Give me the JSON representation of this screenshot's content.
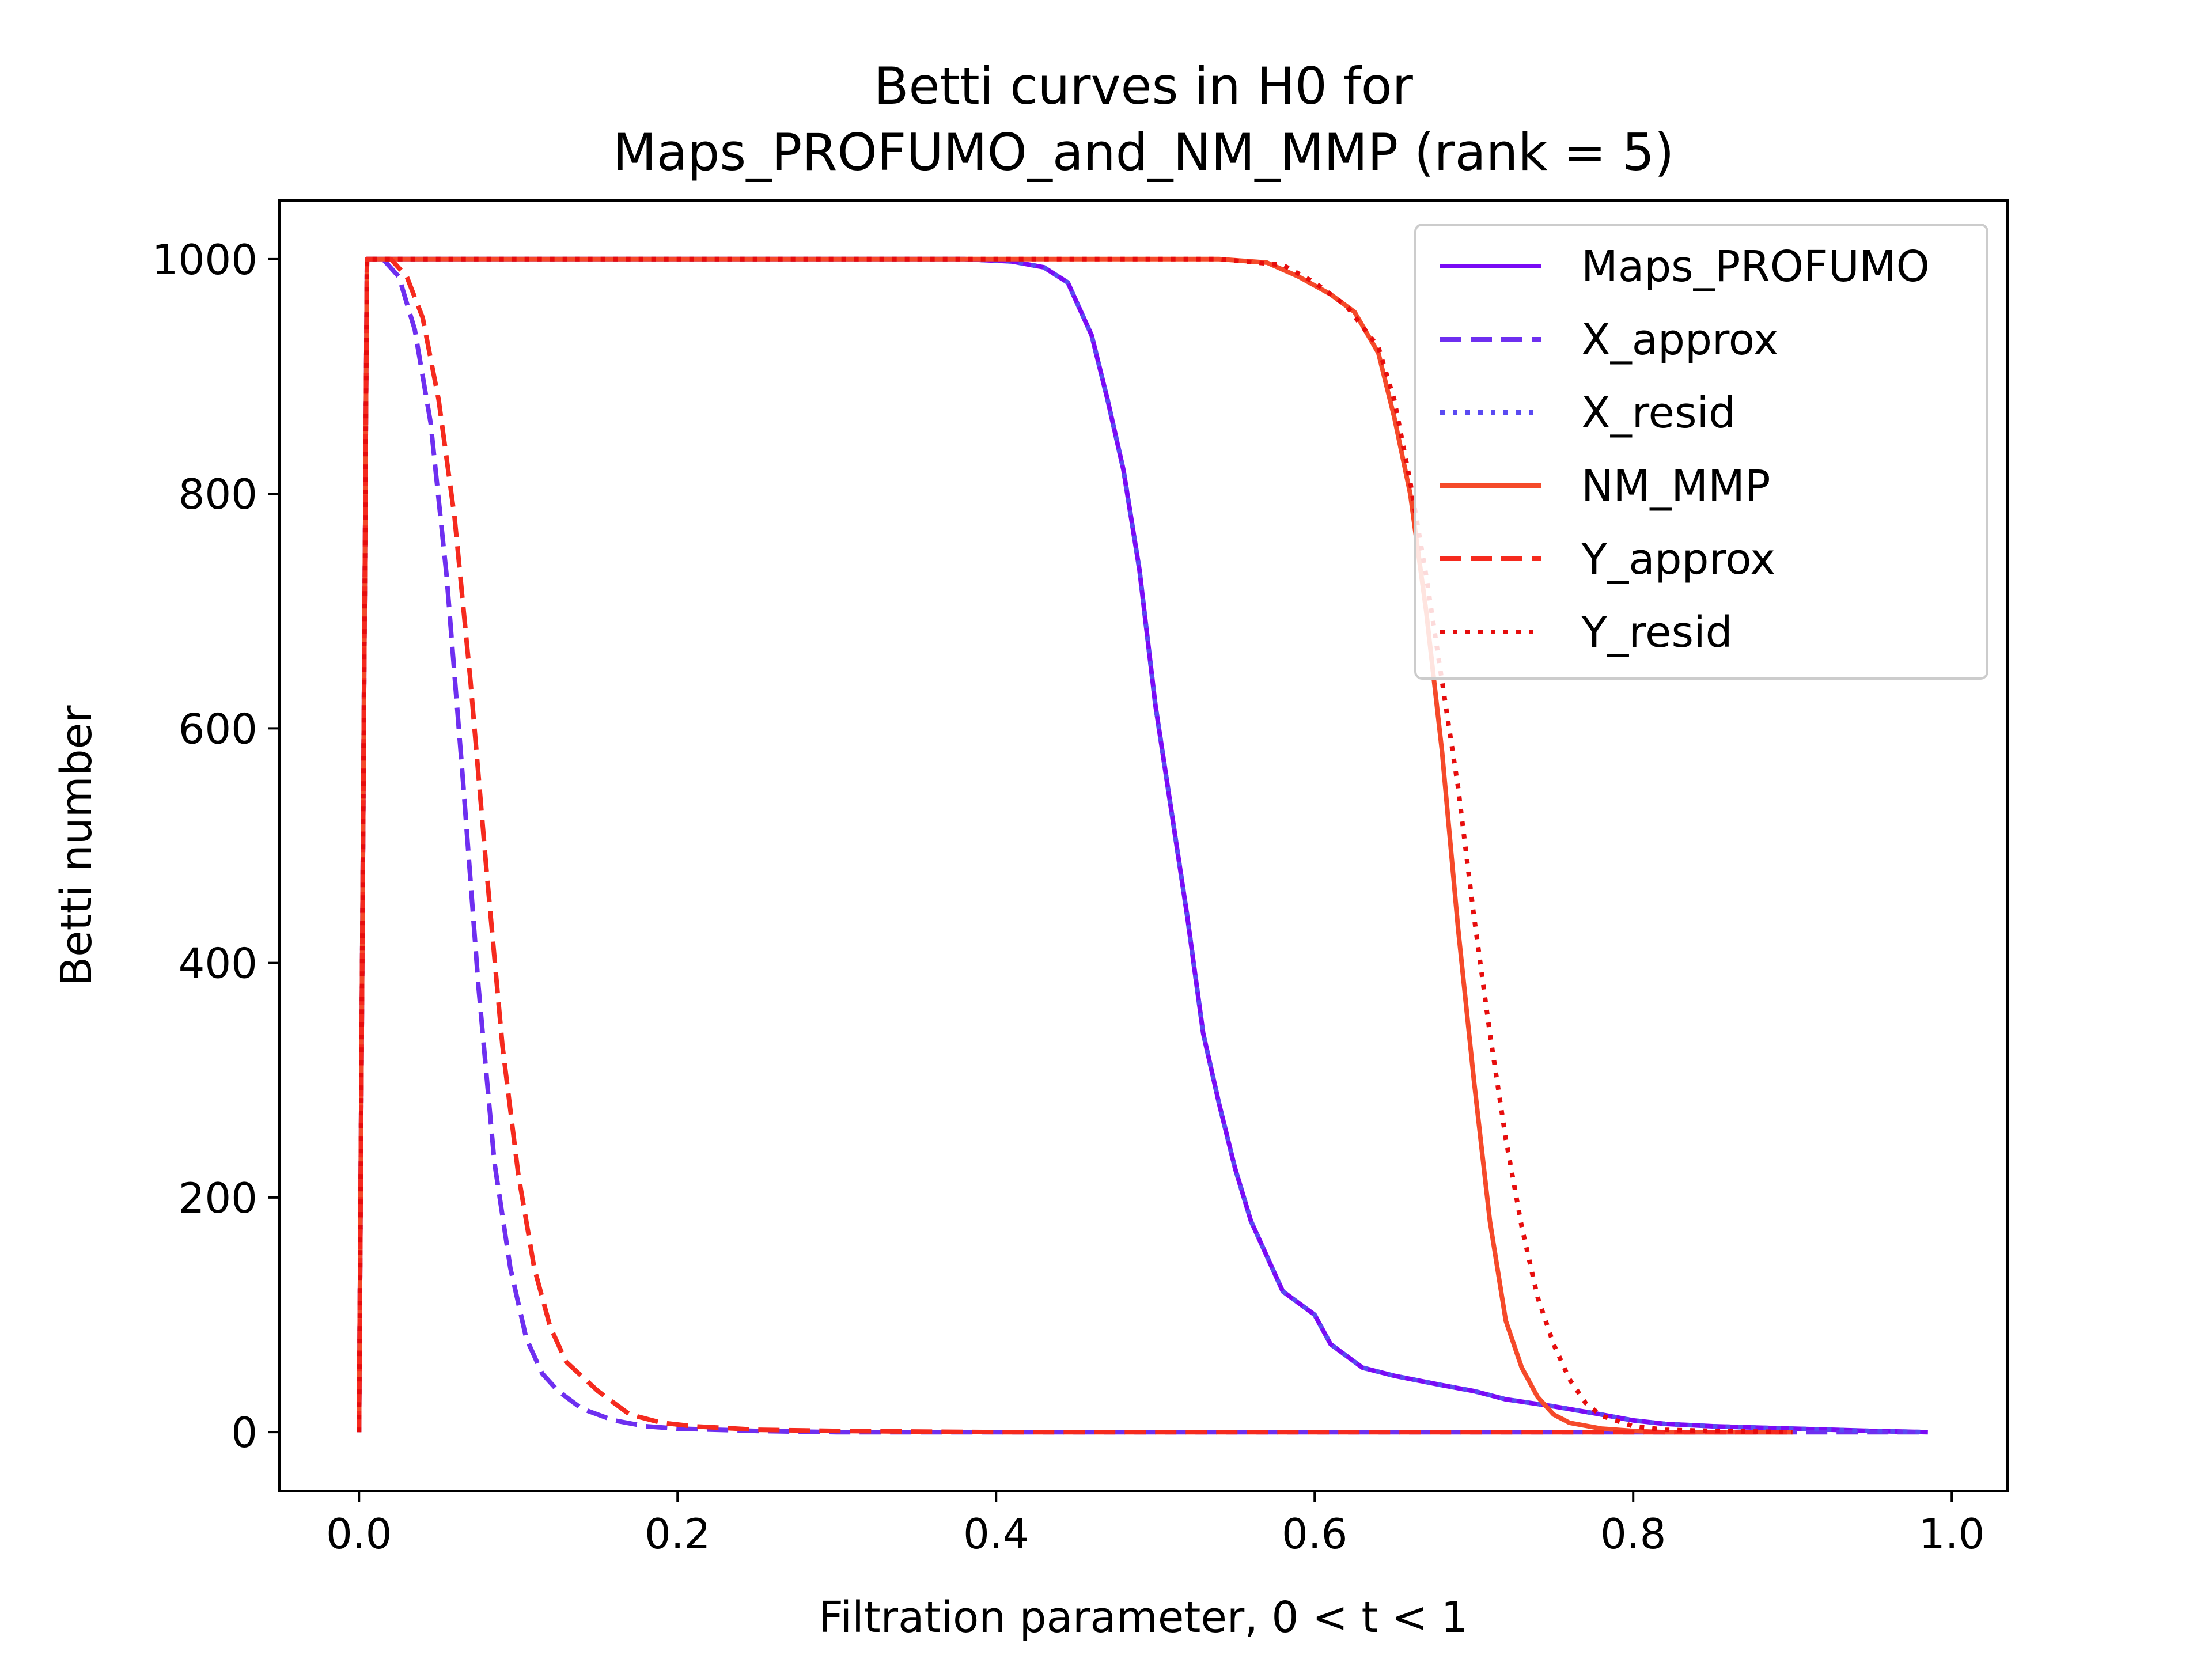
{
  "chart_data": {
    "type": "line",
    "title": [
      "Betti curves in H0 for",
      "Maps_PROFUMO_and_NM_MMP (rank = 5)"
    ],
    "xlabel": "Filtration parameter, 0 < t < 1",
    "ylabel": "Betti number",
    "xlim": [
      -0.05,
      1.035
    ],
    "ylim": [
      -50,
      1050
    ],
    "xticks": [
      0.0,
      0.2,
      0.4,
      0.6,
      0.8,
      1.0
    ],
    "xtick_labels": [
      "0.0",
      "0.2",
      "0.4",
      "0.6",
      "0.8",
      "1.0"
    ],
    "yticks": [
      0,
      200,
      400,
      600,
      800,
      1000
    ],
    "ytick_labels": [
      "0",
      "200",
      "400",
      "600",
      "800",
      "1000"
    ],
    "grid": false,
    "legend_position": "top-right",
    "series": [
      {
        "name": "Maps_PROFUMO",
        "color": "#7a0af5",
        "dash": "solid",
        "x": [
          0,
          0.005,
          0.38,
          0.41,
          0.43,
          0.445,
          0.46,
          0.47,
          0.48,
          0.49,
          0.5,
          0.51,
          0.52,
          0.53,
          0.54,
          0.55,
          0.56,
          0.58,
          0.6,
          0.61,
          0.62,
          0.63,
          0.65,
          0.68,
          0.7,
          0.72,
          0.75,
          0.78,
          0.8,
          0.82,
          0.85,
          0.9,
          0.95,
          0.985
        ],
        "y": [
          0,
          1000,
          1000,
          998,
          993,
          980,
          935,
          880,
          820,
          735,
          620,
          530,
          440,
          340,
          280,
          225,
          180,
          120,
          100,
          75,
          65,
          55,
          48,
          40,
          35,
          28,
          22,
          15,
          10,
          7,
          5,
          3,
          1,
          0
        ]
      },
      {
        "name": "X_approx",
        "color": "#6e2ff0",
        "dash": "dashed",
        "x": [
          0,
          0.005,
          0.015,
          0.025,
          0.035,
          0.045,
          0.055,
          0.065,
          0.075,
          0.085,
          0.095,
          0.105,
          0.115,
          0.125,
          0.14,
          0.16,
          0.18,
          0.2,
          0.25,
          0.3,
          0.4,
          0.6,
          0.8,
          0.985
        ],
        "y": [
          0,
          1000,
          1000,
          985,
          940,
          860,
          730,
          560,
          380,
          230,
          140,
          80,
          50,
          35,
          20,
          10,
          5,
          3,
          1,
          0,
          0,
          0,
          0,
          0
        ]
      },
      {
        "name": "X_resid",
        "color": "#5a4af2",
        "dash": "dotted",
        "x": [
          0,
          0.005,
          0.38,
          0.41,
          0.43,
          0.445,
          0.46,
          0.47,
          0.48,
          0.49,
          0.5,
          0.51,
          0.52,
          0.53,
          0.54,
          0.55,
          0.56,
          0.58,
          0.6,
          0.61,
          0.62,
          0.63,
          0.65,
          0.68,
          0.7,
          0.72,
          0.75,
          0.78,
          0.8,
          0.82,
          0.85,
          0.9,
          0.95,
          0.985
        ],
        "y": [
          0,
          1000,
          1000,
          998,
          993,
          980,
          935,
          880,
          820,
          735,
          620,
          530,
          440,
          340,
          280,
          225,
          180,
          120,
          100,
          75,
          65,
          55,
          48,
          40,
          35,
          28,
          22,
          15,
          10,
          7,
          5,
          3,
          1,
          0
        ]
      },
      {
        "name": "NM_MMP",
        "color": "#f54a2a",
        "dash": "solid",
        "x": [
          0,
          0.005,
          0.54,
          0.57,
          0.59,
          0.61,
          0.625,
          0.64,
          0.65,
          0.66,
          0.67,
          0.68,
          0.69,
          0.7,
          0.71,
          0.72,
          0.73,
          0.74,
          0.75,
          0.76,
          0.78,
          0.8,
          0.82,
          0.84,
          0.86,
          0.9
        ],
        "y": [
          0,
          1000,
          1000,
          997,
          985,
          970,
          955,
          920,
          865,
          800,
          700,
          580,
          430,
          300,
          180,
          95,
          55,
          30,
          15,
          8,
          3,
          1,
          0,
          0,
          0,
          0
        ]
      },
      {
        "name": "Y_approx",
        "color": "#f52a1e",
        "dash": "dashed",
        "x": [
          0,
          0.005,
          0.02,
          0.03,
          0.04,
          0.05,
          0.06,
          0.07,
          0.08,
          0.09,
          0.1,
          0.11,
          0.12,
          0.13,
          0.15,
          0.17,
          0.19,
          0.21,
          0.25,
          0.3,
          0.4,
          0.6,
          0.8,
          0.9
        ],
        "y": [
          0,
          1000,
          1000,
          985,
          950,
          880,
          780,
          640,
          480,
          330,
          220,
          140,
          90,
          60,
          35,
          15,
          8,
          5,
          2,
          1,
          0,
          0,
          0,
          0
        ]
      },
      {
        "name": "Y_resid",
        "color": "#e60d0d",
        "dash": "dotted",
        "x": [
          0,
          0.005,
          0.54,
          0.58,
          0.6,
          0.62,
          0.64,
          0.65,
          0.66,
          0.67,
          0.68,
          0.69,
          0.7,
          0.71,
          0.72,
          0.73,
          0.74,
          0.75,
          0.76,
          0.77,
          0.78,
          0.8,
          0.82,
          0.85,
          0.9
        ],
        "y": [
          0,
          1000,
          1000,
          995,
          980,
          960,
          925,
          880,
          810,
          730,
          640,
          550,
          440,
          340,
          250,
          175,
          115,
          75,
          45,
          25,
          14,
          5,
          2,
          1,
          0
        ]
      }
    ]
  }
}
